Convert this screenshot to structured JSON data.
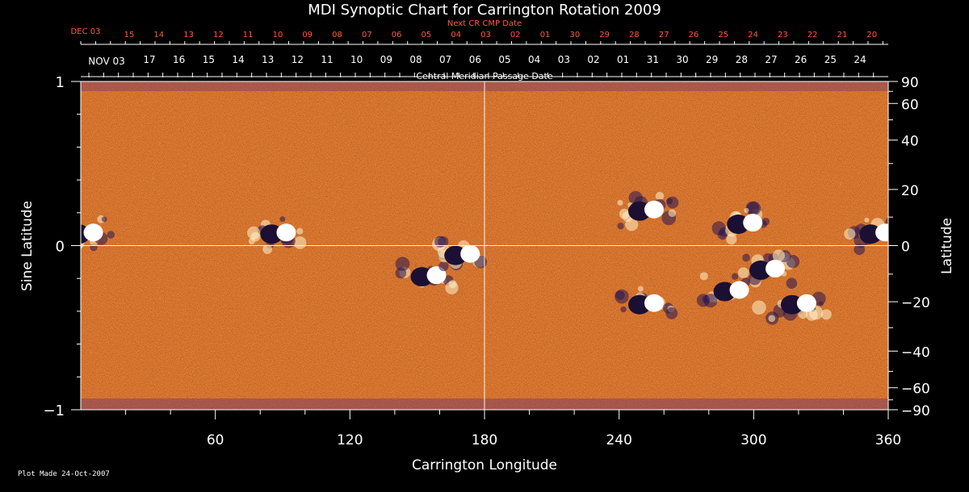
{
  "title": "MDI Synoptic Chart for Carrington Rotation 2009",
  "footer": "Plot Made 24-Oct-2007",
  "colors": {
    "background": "#000000",
    "text": "#ffffff",
    "next_cr_text": "#ff5a3c",
    "map_base": "#e8531b",
    "map_dark": "#1b1033",
    "map_bright": "#fff3c8",
    "guide_line": "#f4f4f4"
  },
  "chart_data": {
    "type": "heatmap",
    "title": "MDI Synoptic Chart for Carrington Rotation 2009",
    "xlabel": "Carrington Longitude",
    "xlim": [
      0,
      360
    ],
    "x_ticks": [
      "60",
      "120",
      "180",
      "240",
      "300",
      "360"
    ],
    "ylabel_left": "Sine Latitude",
    "ylim_left": [
      -1,
      1
    ],
    "y_ticks_left": [
      "1",
      "0",
      "−1"
    ],
    "ylabel_right": "Latitude",
    "y_ticks_right": [
      "90",
      "60",
      "40",
      "20",
      "0",
      "−20",
      "−40",
      "−60",
      "−90"
    ],
    "next_cr_axis": {
      "label": "Next CR CMP Date",
      "start_label": "DEC 03",
      "dates": [
        "15",
        "14",
        "13",
        "12",
        "11",
        "10",
        "09",
        "08",
        "07",
        "06",
        "05",
        "04",
        "03",
        "02",
        "01",
        "30",
        "29",
        "28",
        "27",
        "26",
        "25",
        "24",
        "23",
        "22",
        "21",
        "20"
      ]
    },
    "cmp_axis": {
      "label": "Central Meridian Passage Date",
      "start_label": "NOV 03",
      "dates": [
        "17",
        "16",
        "15",
        "14",
        "13",
        "12",
        "11",
        "10",
        "09",
        "08",
        "07",
        "06",
        "05",
        "04",
        "03",
        "02",
        "01",
        "31",
        "30",
        "29",
        "28",
        "27",
        "26",
        "25",
        "24"
      ]
    },
    "active_regions": [
      {
        "lon": 2,
        "sinlat": 0.07,
        "polarity": "bipolar"
      },
      {
        "lon": 88,
        "sinlat": 0.07,
        "polarity": "bipolar"
      },
      {
        "lon": 155,
        "sinlat": -0.19,
        "polarity": "bipolar"
      },
      {
        "lon": 170,
        "sinlat": -0.06,
        "polarity": "bipolar"
      },
      {
        "lon": 252,
        "sinlat": 0.21,
        "polarity": "bipolar"
      },
      {
        "lon": 252,
        "sinlat": -0.36,
        "polarity": "bipolar"
      },
      {
        "lon": 290,
        "sinlat": -0.28,
        "polarity": "bipolar"
      },
      {
        "lon": 296,
        "sinlat": 0.13,
        "polarity": "bipolar"
      },
      {
        "lon": 306,
        "sinlat": -0.15,
        "polarity": "bipolar"
      },
      {
        "lon": 320,
        "sinlat": -0.36,
        "polarity": "bipolar"
      },
      {
        "lon": 355,
        "sinlat": 0.07,
        "polarity": "bipolar"
      }
    ]
  }
}
